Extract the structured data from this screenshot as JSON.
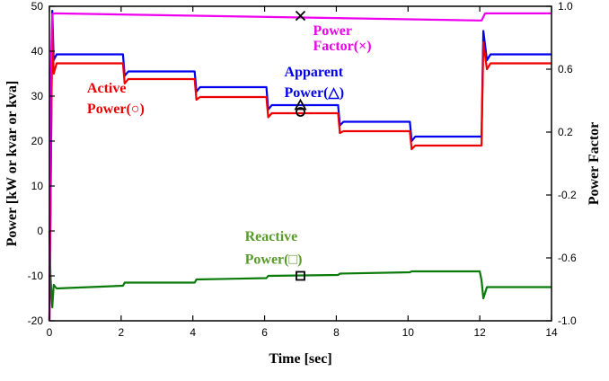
{
  "chart_data": {
    "type": "line",
    "xlabel": "Time [sec]",
    "ylabel_left": "Power [kW or kvar or kva]",
    "ylabel_right": "Power Factor",
    "xlim": [
      0,
      14
    ],
    "ylim_left": [
      -20,
      50
    ],
    "ylim_right": [
      -1.0,
      1.0
    ],
    "x_ticks": [
      "0",
      "2",
      "4",
      "6",
      "8",
      "10",
      "12",
      "14"
    ],
    "y_left_ticks": [
      "-20",
      "-10",
      "0",
      "10",
      "20",
      "30",
      "40",
      "50"
    ],
    "y_right_ticks": [
      "-1.0",
      "-0.6",
      "-0.2",
      "0.2",
      "0.6",
      "1.0"
    ],
    "grid": false,
    "series": [
      {
        "name": "Apparent Power(△)",
        "axis": "left",
        "color": "#0000ee",
        "marker": "triangle",
        "marker_point": [
          7,
          28
        ],
        "points": [
          [
            0,
            -20
          ],
          [
            0.03,
            5
          ],
          [
            0.08,
            49
          ],
          [
            0.12,
            38
          ],
          [
            0.2,
            39.3
          ],
          [
            2.05,
            39.3
          ],
          [
            2.1,
            34.5
          ],
          [
            2.2,
            35.5
          ],
          [
            4.05,
            35.5
          ],
          [
            4.1,
            31
          ],
          [
            4.2,
            32
          ],
          [
            6.05,
            32
          ],
          [
            6.1,
            27
          ],
          [
            6.2,
            28
          ],
          [
            8.05,
            28
          ],
          [
            8.1,
            23.5
          ],
          [
            8.2,
            24.3
          ],
          [
            10.05,
            24.3
          ],
          [
            10.1,
            20
          ],
          [
            10.2,
            21
          ],
          [
            12.05,
            21
          ],
          [
            12.1,
            44.5
          ],
          [
            12.2,
            38
          ],
          [
            12.3,
            39.3
          ],
          [
            14,
            39.3
          ]
        ]
      },
      {
        "name": "Active Power(○)",
        "axis": "left",
        "color": "#ee0000",
        "marker": "circle",
        "marker_point": [
          7,
          26.5
        ],
        "points": [
          [
            0,
            -20
          ],
          [
            0.03,
            5
          ],
          [
            0.08,
            47
          ],
          [
            0.12,
            35
          ],
          [
            0.2,
            37.3
          ],
          [
            2.05,
            37.3
          ],
          [
            2.1,
            32.8
          ],
          [
            2.2,
            33.8
          ],
          [
            4.05,
            33.8
          ],
          [
            4.1,
            29.2
          ],
          [
            4.2,
            29.8
          ],
          [
            6.05,
            29.8
          ],
          [
            6.1,
            25.3
          ],
          [
            6.2,
            26.2
          ],
          [
            8.05,
            26.2
          ],
          [
            8.1,
            21.8
          ],
          [
            8.2,
            22.2
          ],
          [
            10.05,
            22.2
          ],
          [
            10.1,
            18.2
          ],
          [
            10.2,
            19
          ],
          [
            12.05,
            19
          ],
          [
            12.1,
            42
          ],
          [
            12.2,
            36
          ],
          [
            12.3,
            37.3
          ],
          [
            14,
            37.3
          ]
        ]
      },
      {
        "name": "Reactive Power(□)",
        "axis": "left",
        "color": "#0a7a0a",
        "marker": "square",
        "marker_point": [
          7,
          -10
        ],
        "points": [
          [
            0,
            0
          ],
          [
            0.03,
            -10
          ],
          [
            0.08,
            -17
          ],
          [
            0.12,
            -12
          ],
          [
            0.2,
            -12.8
          ],
          [
            2.05,
            -12.2
          ],
          [
            2.1,
            -11.5
          ],
          [
            4.05,
            -11.5
          ],
          [
            4.1,
            -10.8
          ],
          [
            6.05,
            -10.5
          ],
          [
            6.1,
            -10
          ],
          [
            8.05,
            -9.8
          ],
          [
            8.1,
            -9.5
          ],
          [
            10.05,
            -9.2
          ],
          [
            10.1,
            -9
          ],
          [
            12.0,
            -9
          ],
          [
            12.05,
            -11
          ],
          [
            12.1,
            -15
          ],
          [
            12.2,
            -12.5
          ],
          [
            14,
            -12.5
          ]
        ]
      },
      {
        "name": "Power Factor(×)",
        "axis": "right",
        "color": "#ee00ee",
        "marker": "cross",
        "marker_point": [
          7,
          0.94
        ],
        "points": [
          [
            0,
            -1.0
          ],
          [
            0.03,
            0.5
          ],
          [
            0.08,
            0.95
          ],
          [
            0.15,
            0.955
          ],
          [
            12.0,
            0.91
          ],
          [
            12.05,
            0.91
          ],
          [
            12.15,
            0.955
          ],
          [
            14,
            0.955
          ]
        ]
      }
    ],
    "annotations": [
      {
        "lines": [
          "Power",
          "Factor(×)"
        ],
        "color": "#ee00ee",
        "x": 7.35,
        "y_lines": [
          43.6,
          40.2
        ]
      },
      {
        "lines": [
          "Apparent",
          "Power(△)"
        ],
        "color": "#0000ee",
        "x": 6.55,
        "y_lines": [
          34.4,
          29.8
        ]
      },
      {
        "lines": [
          "Active",
          "Power(○)"
        ],
        "color": "#ee0000",
        "x": 1.05,
        "y_lines": [
          30.8,
          26.2
        ]
      },
      {
        "lines": [
          "Reactive",
          "Power(□)"
        ],
        "color": "#5a9a2a",
        "x": 5.45,
        "y_lines": [
          -2.2,
          -7.3
        ]
      }
    ]
  }
}
